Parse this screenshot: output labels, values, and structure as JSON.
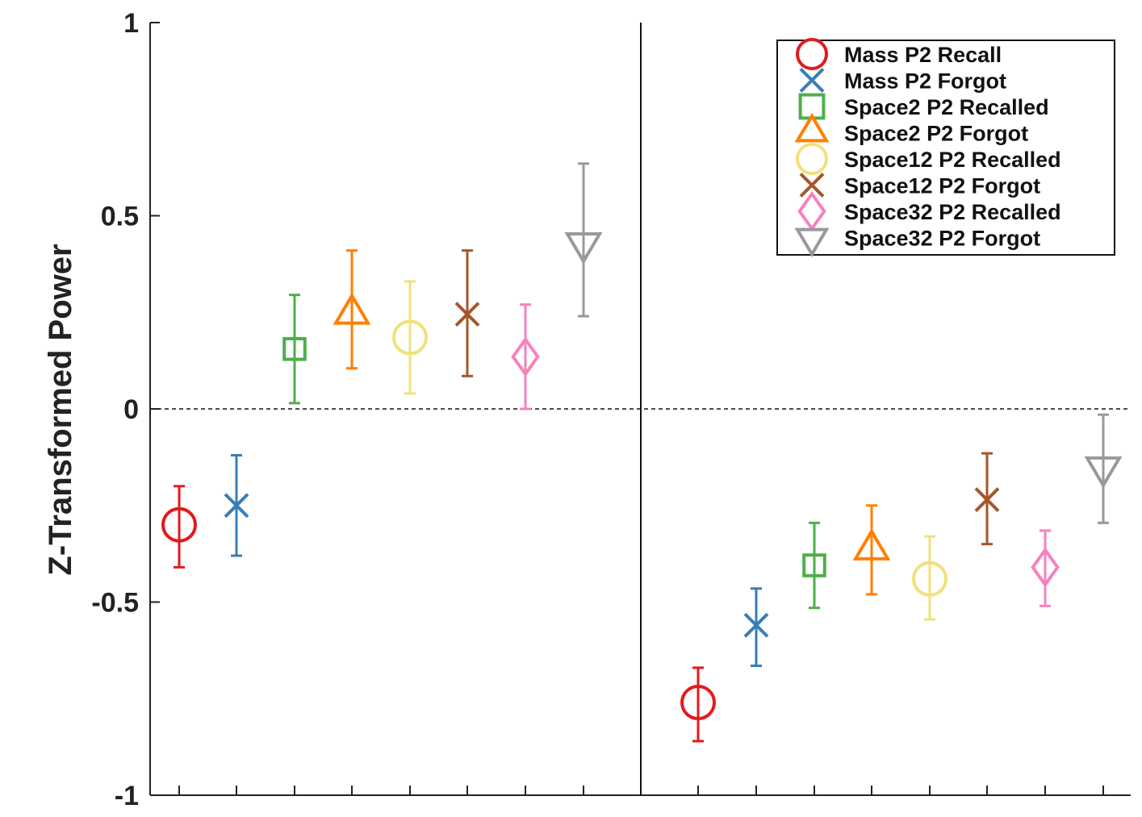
{
  "chart_data": {
    "type": "scatter",
    "ylabel": "Z-Transformed Power",
    "ylim": [
      -1,
      1
    ],
    "yticks": [
      -1,
      -0.5,
      0,
      0.5,
      1
    ],
    "ytick_labels": [
      "-1",
      "-0.5",
      "0",
      "0.5",
      "1"
    ],
    "zero_reference_line": "dashed",
    "divider_line": "solid vertical between panels",
    "legend_position": "top-right",
    "grid": false,
    "series": [
      {
        "name": "Mass P2 Recall",
        "marker": "circle",
        "color": "#e41a1c"
      },
      {
        "name": "Mass P2 Forgot",
        "marker": "x",
        "color": "#377eb8"
      },
      {
        "name": "Space2 P2 Recalled",
        "marker": "square",
        "color": "#4daf4a"
      },
      {
        "name": "Space2 P2 Forgot",
        "marker": "triangle-up",
        "color": "#ff7f00"
      },
      {
        "name": "Space12 P2 Recalled",
        "marker": "circle",
        "color": "#f0e27a"
      },
      {
        "name": "Space12 P2 Forgot",
        "marker": "x",
        "color": "#a65628"
      },
      {
        "name": "Space32 P2 Recalled",
        "marker": "diamond",
        "color": "#f781bf"
      },
      {
        "name": "Space32 P2 Forgot",
        "marker": "triangle-down",
        "color": "#999999"
      }
    ],
    "panels": [
      {
        "points": [
          {
            "y": -0.3,
            "low": -0.41,
            "high": -0.2
          },
          {
            "y": -0.25,
            "low": -0.38,
            "high": -0.12
          },
          {
            "y": 0.155,
            "low": 0.015,
            "high": 0.295
          },
          {
            "y": 0.245,
            "low": 0.105,
            "high": 0.41
          },
          {
            "y": 0.185,
            "low": 0.04,
            "high": 0.33
          },
          {
            "y": 0.245,
            "low": 0.085,
            "high": 0.41
          },
          {
            "y": 0.135,
            "low": 0.0,
            "high": 0.27
          },
          {
            "y": 0.43,
            "low": 0.24,
            "high": 0.635
          }
        ]
      },
      {
        "points": [
          {
            "y": -0.76,
            "low": -0.86,
            "high": -0.67
          },
          {
            "y": -0.56,
            "low": -0.665,
            "high": -0.465
          },
          {
            "y": -0.405,
            "low": -0.515,
            "high": -0.295
          },
          {
            "y": -0.365,
            "low": -0.48,
            "high": -0.25
          },
          {
            "y": -0.44,
            "low": -0.545,
            "high": -0.33
          },
          {
            "y": -0.235,
            "low": -0.35,
            "high": -0.115
          },
          {
            "y": -0.41,
            "low": -0.51,
            "high": -0.315
          },
          {
            "y": -0.15,
            "low": -0.295,
            "high": -0.015
          }
        ]
      }
    ]
  }
}
